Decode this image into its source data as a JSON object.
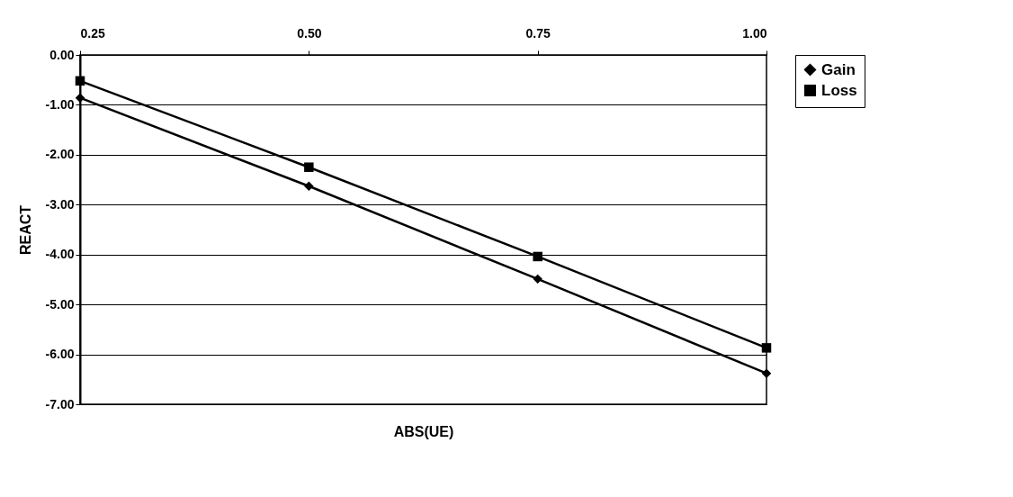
{
  "chart_data": {
    "type": "line",
    "xlabel": "ABS(UE)",
    "ylabel": "REACT",
    "x": [
      0.25,
      0.5,
      0.75,
      1.0
    ],
    "series": [
      {
        "name": "Gain",
        "color": "#000000",
        "marker": "diamond",
        "values": [
          -0.86,
          -2.63,
          -4.49,
          -6.38
        ]
      },
      {
        "name": "Loss",
        "color": "#000000",
        "marker": "square",
        "values": [
          -0.52,
          -2.25,
          -4.04,
          -5.87
        ]
      }
    ],
    "xlim": [
      0.25,
      1.0
    ],
    "xticks": [
      {
        "value": 0.25,
        "label": "0.25"
      },
      {
        "value": 0.5,
        "label": "0.50"
      },
      {
        "value": 0.75,
        "label": "0.75"
      },
      {
        "value": 1.0,
        "label": "1.00"
      }
    ],
    "ylim": [
      -7,
      0
    ],
    "yticks": [
      {
        "value": 0,
        "label": "0.00"
      },
      {
        "value": -1,
        "label": "-1.00"
      },
      {
        "value": -2,
        "label": "-2.00"
      },
      {
        "value": -3,
        "label": "-3.00"
      },
      {
        "value": -4,
        "label": "-4.00"
      },
      {
        "value": -5,
        "label": "-5.00"
      },
      {
        "value": -6,
        "label": "-6.00"
      },
      {
        "value": -7,
        "label": "-7.00"
      }
    ],
    "grid": "y",
    "legend": "right",
    "line_style": "solid"
  }
}
